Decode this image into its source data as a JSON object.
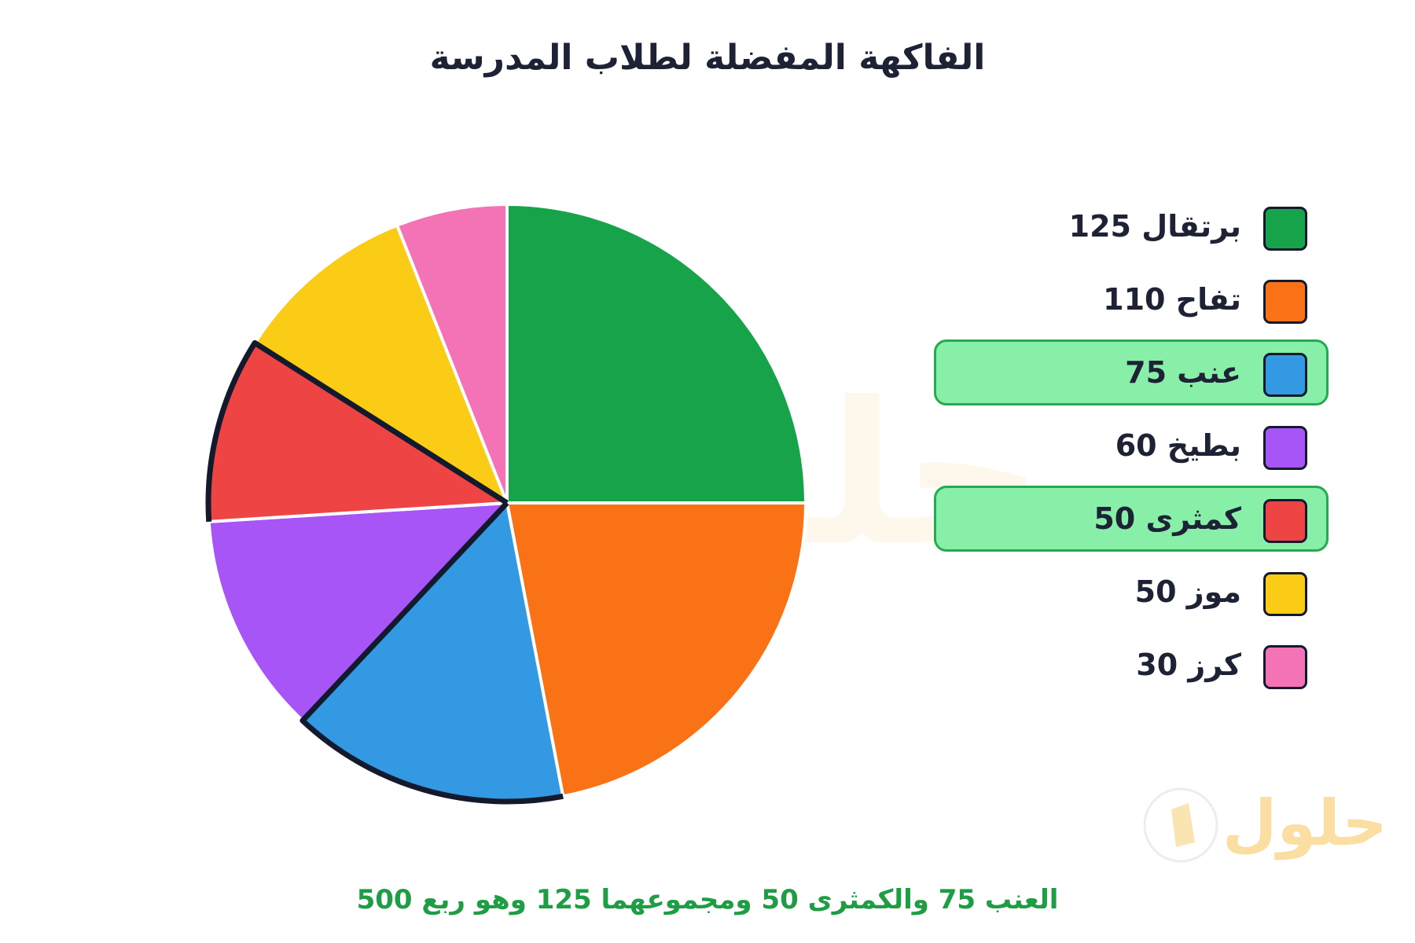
{
  "title": "الفاكهة المفضلة لطلاب المدرسة",
  "chart_data": {
    "type": "pie",
    "title": "الفاكهة المفضلة لطلاب المدرسة",
    "categories": [
      "برتقال",
      "تفاح",
      "عنب",
      "بطيخ",
      "كمثرى",
      "موز",
      "كرز"
    ],
    "values": [
      125,
      110,
      75,
      60,
      50,
      50,
      30
    ],
    "colors": [
      "#16a34a",
      "#f97316",
      "#3399e3",
      "#a855f7",
      "#ef4444",
      "#facc15",
      "#f472b6"
    ],
    "highlighted": [
      "عنب",
      "كمثرى"
    ],
    "legend_position": "right"
  },
  "legend": {
    "items": [
      {
        "label": "برتقال 125",
        "color": "#16a34a",
        "highlight": false
      },
      {
        "label": "تفاح 110",
        "color": "#f97316",
        "highlight": false
      },
      {
        "label": "عنب 75",
        "color": "#3399e3",
        "highlight": true
      },
      {
        "label": "بطيخ 60",
        "color": "#a855f7",
        "highlight": false
      },
      {
        "label": "كمثرى 50",
        "color": "#ef4444",
        "highlight": true
      },
      {
        "label": "موز 50",
        "color": "#facc15",
        "highlight": false
      },
      {
        "label": "كرز 30",
        "color": "#f472b6",
        "highlight": false
      }
    ]
  },
  "footnote": {
    "text": "العنب 75 والكمثرى 50 ومجموعهما 125 وهو ربع 500",
    "color": "#1f9d45"
  },
  "watermark": {
    "text": "حلول"
  }
}
